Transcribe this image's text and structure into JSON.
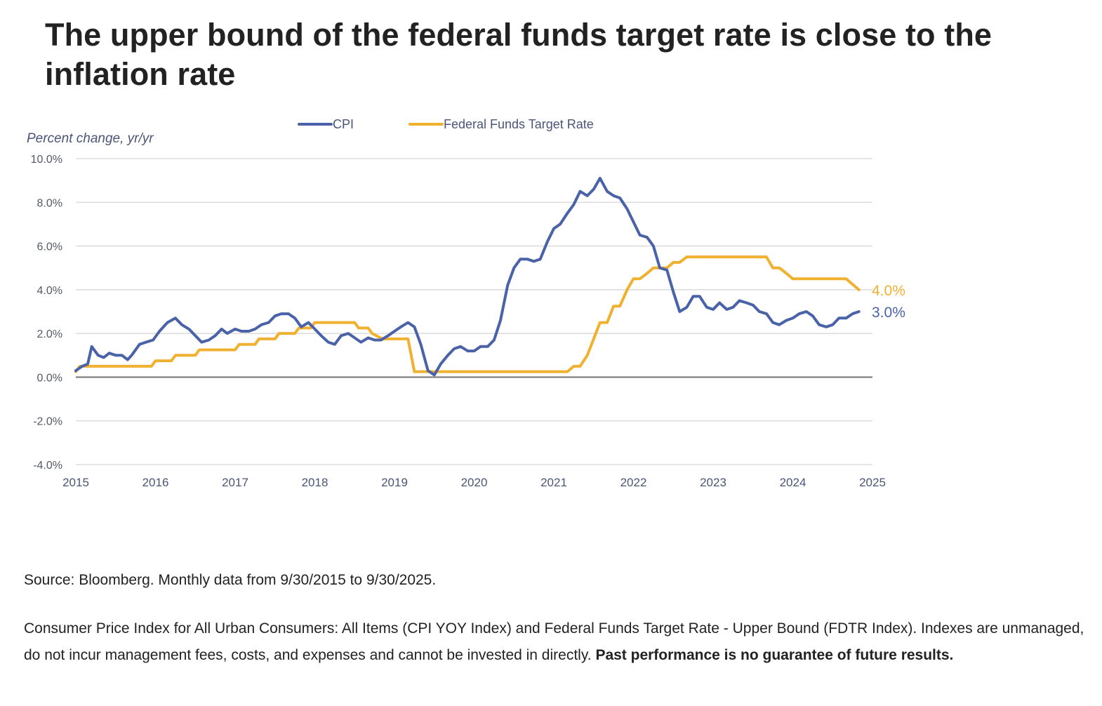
{
  "title": "The upper bound of the federal funds target rate is close to the inflation rate",
  "chart_data": {
    "type": "line",
    "ylabel": "Percent change, yr/yr",
    "ylim": [
      -4,
      10
    ],
    "yticks": [
      10,
      8,
      6,
      4,
      2,
      0,
      -2,
      -4
    ],
    "ytick_labels": [
      "10.0%",
      "8.0%",
      "6.0%",
      "4.0%",
      "2.0%",
      "0.0%",
      "-2.0%",
      "-4.0%"
    ],
    "xlim": [
      2015,
      2025
    ],
    "xticks": [
      2015,
      2016,
      2017,
      2018,
      2019,
      2020,
      2021,
      2022,
      2023,
      2024,
      2025
    ],
    "xtick_labels": [
      "2015",
      "2016",
      "2017",
      "2018",
      "2019",
      "2020",
      "2021",
      "2022",
      "2023",
      "2024",
      "2025"
    ],
    "grid": true,
    "legend_position": "top-center",
    "series": [
      {
        "name": "CPI",
        "color": "#4a63a8",
        "end_label": "3.0%",
        "points": [
          [
            2015.0,
            0.3
          ],
          [
            2015.08,
            0.5
          ],
          [
            2015.15,
            0.6
          ],
          [
            2015.2,
            1.4
          ],
          [
            2015.28,
            1.0
          ],
          [
            2015.35,
            0.9
          ],
          [
            2015.42,
            1.1
          ],
          [
            2015.5,
            1.0
          ],
          [
            2015.58,
            1.0
          ],
          [
            2015.65,
            0.8
          ],
          [
            2015.7,
            1.0
          ],
          [
            2015.8,
            1.5
          ],
          [
            2015.88,
            1.6
          ],
          [
            2015.97,
            1.7
          ],
          [
            2016.05,
            2.1
          ],
          [
            2016.15,
            2.5
          ],
          [
            2016.25,
            2.7
          ],
          [
            2016.33,
            2.4
          ],
          [
            2016.42,
            2.2
          ],
          [
            2016.5,
            1.9
          ],
          [
            2016.58,
            1.6
          ],
          [
            2016.67,
            1.7
          ],
          [
            2016.75,
            1.9
          ],
          [
            2016.83,
            2.2
          ],
          [
            2016.9,
            2.0
          ],
          [
            2017.0,
            2.2
          ],
          [
            2017.08,
            2.1
          ],
          [
            2017.17,
            2.1
          ],
          [
            2017.25,
            2.2
          ],
          [
            2017.33,
            2.4
          ],
          [
            2017.42,
            2.5
          ],
          [
            2017.5,
            2.8
          ],
          [
            2017.58,
            2.9
          ],
          [
            2017.67,
            2.9
          ],
          [
            2017.75,
            2.7
          ],
          [
            2017.83,
            2.3
          ],
          [
            2017.92,
            2.5
          ],
          [
            2018.0,
            2.2
          ],
          [
            2018.08,
            1.9
          ],
          [
            2018.17,
            1.6
          ],
          [
            2018.25,
            1.5
          ],
          [
            2018.33,
            1.9
          ],
          [
            2018.42,
            2.0
          ],
          [
            2018.5,
            1.8
          ],
          [
            2018.58,
            1.6
          ],
          [
            2018.67,
            1.8
          ],
          [
            2018.75,
            1.7
          ],
          [
            2018.83,
            1.7
          ],
          [
            2018.92,
            1.9
          ],
          [
            2019.0,
            2.1
          ],
          [
            2019.08,
            2.3
          ],
          [
            2019.17,
            2.5
          ],
          [
            2019.25,
            2.3
          ],
          [
            2019.33,
            1.5
          ],
          [
            2019.42,
            0.3
          ],
          [
            2019.5,
            0.1
          ],
          [
            2019.58,
            0.6
          ],
          [
            2019.67,
            1.0
          ],
          [
            2019.75,
            1.3
          ],
          [
            2019.83,
            1.4
          ],
          [
            2019.92,
            1.2
          ],
          [
            2020.0,
            1.2
          ],
          [
            2020.08,
            1.4
          ],
          [
            2020.17,
            1.4
          ],
          [
            2020.25,
            1.7
          ],
          [
            2020.33,
            2.6
          ],
          [
            2020.42,
            4.2
          ],
          [
            2020.5,
            5.0
          ],
          [
            2020.58,
            5.4
          ],
          [
            2020.67,
            5.4
          ],
          [
            2020.75,
            5.3
          ],
          [
            2020.83,
            5.4
          ],
          [
            2020.92,
            6.2
          ],
          [
            2021.0,
            6.8
          ],
          [
            2021.08,
            7.0
          ],
          [
            2021.17,
            7.5
          ],
          [
            2021.25,
            7.9
          ],
          [
            2021.33,
            8.5
          ],
          [
            2021.42,
            8.3
          ],
          [
            2021.5,
            8.6
          ],
          [
            2021.58,
            9.1
          ],
          [
            2021.67,
            8.5
          ],
          [
            2021.75,
            8.3
          ],
          [
            2021.83,
            8.2
          ],
          [
            2021.92,
            7.7
          ],
          [
            2022.0,
            7.1
          ],
          [
            2022.08,
            6.5
          ],
          [
            2022.17,
            6.4
          ],
          [
            2022.25,
            6.0
          ],
          [
            2022.33,
            5.0
          ],
          [
            2022.42,
            4.9
          ],
          [
            2022.5,
            3.9
          ],
          [
            2022.58,
            3.0
          ],
          [
            2022.67,
            3.2
          ],
          [
            2022.75,
            3.7
          ],
          [
            2022.83,
            3.7
          ],
          [
            2022.92,
            3.2
          ],
          [
            2023.0,
            3.1
          ],
          [
            2023.08,
            3.4
          ],
          [
            2023.17,
            3.1
          ],
          [
            2023.25,
            3.2
          ],
          [
            2023.33,
            3.5
          ],
          [
            2023.42,
            3.4
          ],
          [
            2023.5,
            3.3
          ],
          [
            2023.58,
            3.0
          ],
          [
            2023.67,
            2.9
          ],
          [
            2023.75,
            2.5
          ],
          [
            2023.83,
            2.4
          ],
          [
            2023.92,
            2.6
          ],
          [
            2024.0,
            2.7
          ],
          [
            2024.08,
            2.9
          ],
          [
            2024.17,
            3.0
          ],
          [
            2024.25,
            2.8
          ],
          [
            2024.33,
            2.4
          ],
          [
            2024.42,
            2.3
          ],
          [
            2024.5,
            2.4
          ],
          [
            2024.58,
            2.7
          ],
          [
            2024.67,
            2.7
          ],
          [
            2024.75,
            2.9
          ],
          [
            2024.83,
            3.0
          ]
        ]
      },
      {
        "name": "Federal Funds Target Rate",
        "color": "#f0b030",
        "end_label": "4.0%",
        "points": [
          [
            2015.0,
            0.25
          ],
          [
            2015.05,
            0.5
          ],
          [
            2015.95,
            0.5
          ],
          [
            2016.0,
            0.75
          ],
          [
            2016.2,
            0.75
          ],
          [
            2016.25,
            1.0
          ],
          [
            2016.5,
            1.0
          ],
          [
            2016.55,
            1.25
          ],
          [
            2017.0,
            1.25
          ],
          [
            2017.05,
            1.5
          ],
          [
            2017.25,
            1.5
          ],
          [
            2017.3,
            1.75
          ],
          [
            2017.5,
            1.75
          ],
          [
            2017.55,
            2.0
          ],
          [
            2017.75,
            2.0
          ],
          [
            2017.8,
            2.25
          ],
          [
            2017.95,
            2.25
          ],
          [
            2018.0,
            2.5
          ],
          [
            2018.5,
            2.5
          ],
          [
            2018.55,
            2.25
          ],
          [
            2018.67,
            2.25
          ],
          [
            2018.72,
            2.0
          ],
          [
            2018.85,
            1.75
          ],
          [
            2019.17,
            1.75
          ],
          [
            2019.25,
            0.25
          ],
          [
            2020.17,
            0.25
          ],
          [
            2021.17,
            0.25
          ],
          [
            2021.25,
            0.5
          ],
          [
            2021.33,
            0.5
          ],
          [
            2021.42,
            1.0
          ],
          [
            2021.5,
            1.75
          ],
          [
            2021.58,
            2.5
          ],
          [
            2021.67,
            2.5
          ],
          [
            2021.75,
            3.25
          ],
          [
            2021.83,
            3.25
          ],
          [
            2021.92,
            4.0
          ],
          [
            2022.0,
            4.5
          ],
          [
            2022.08,
            4.5
          ],
          [
            2022.17,
            4.75
          ],
          [
            2022.25,
            5.0
          ],
          [
            2022.42,
            5.0
          ],
          [
            2022.5,
            5.25
          ],
          [
            2022.58,
            5.25
          ],
          [
            2022.67,
            5.5
          ],
          [
            2023.67,
            5.5
          ],
          [
            2023.75,
            5.0
          ],
          [
            2023.83,
            5.0
          ],
          [
            2023.92,
            4.75
          ],
          [
            2024.0,
            4.5
          ],
          [
            2024.67,
            4.5
          ],
          [
            2024.75,
            4.25
          ],
          [
            2024.83,
            4.0
          ]
        ]
      }
    ]
  },
  "footnotes": {
    "source": "Source: Bloomberg. Monthly data from 9/30/2015 to 9/30/2025.",
    "disclaimer_text": "Consumer Price Index for All Urban Consumers: All Items (CPI YOY Index) and Federal Funds Target Rate - Upper Bound (FDTR Index).  Indexes are unmanaged, do not incur management fees, costs, and expenses and cannot be invested in directly. ",
    "disclaimer_bold": "Past performance is no guarantee of future results."
  }
}
